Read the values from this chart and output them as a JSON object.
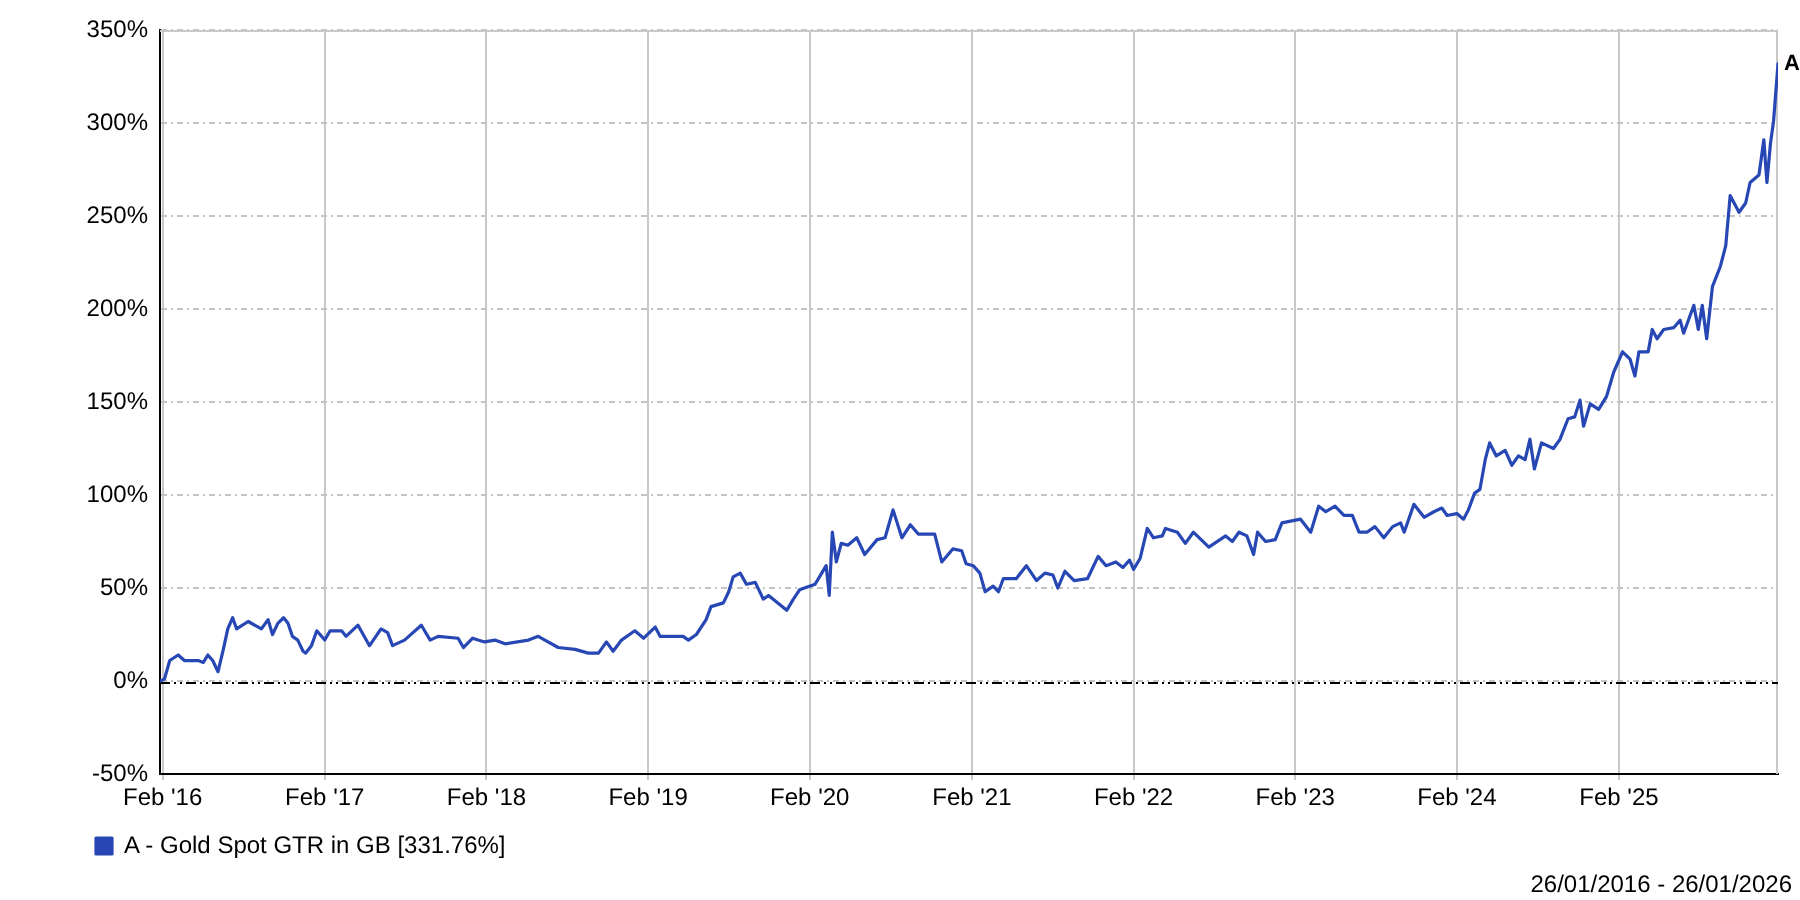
{
  "chart_data": {
    "type": "line",
    "x": [
      "2016-01-26",
      "2016-02-05",
      "2016-02-17",
      "2016-03-07",
      "2016-03-21",
      "2016-04-21",
      "2016-05-03",
      "2016-05-13",
      "2016-05-24",
      "2016-06-05",
      "2016-06-17",
      "2016-06-27",
      "2016-07-08",
      "2016-07-17",
      "2016-08-12",
      "2016-09-11",
      "2016-09-26",
      "2016-10-06",
      "2016-10-18",
      "2016-10-31",
      "2016-11-10",
      "2016-11-20",
      "2016-12-02",
      "2016-12-14",
      "2016-12-20",
      "2017-01-02",
      "2017-01-14",
      "2017-02-01",
      "2017-02-13",
      "2017-03-11",
      "2017-03-21",
      "2017-04-17",
      "2017-05-13",
      "2017-06-08",
      "2017-06-23",
      "2017-07-04",
      "2017-07-31",
      "2017-09-07",
      "2017-09-27",
      "2017-10-15",
      "2017-11-29",
      "2017-12-11",
      "2018-01-01",
      "2018-01-13",
      "2018-01-28",
      "2018-02-20",
      "2018-03-15",
      "2018-05-07",
      "2018-05-29",
      "2018-06-13",
      "2018-07-13",
      "2018-08-20",
      "2018-09-19",
      "2018-10-12",
      "2018-10-30",
      "2018-11-14",
      "2018-12-03",
      "2019-01-02",
      "2019-01-22",
      "2019-02-17",
      "2019-02-28",
      "2019-04-21",
      "2019-05-03",
      "2019-05-21",
      "2019-06-12",
      "2019-06-23",
      "2019-07-21",
      "2019-08-02",
      "2019-08-12",
      "2019-08-28",
      "2019-09-11",
      "2019-10-01",
      "2019-10-19",
      "2019-10-31",
      "2019-12-11",
      "2019-12-26",
      "2020-01-09",
      "2020-02-13",
      "2020-02-28",
      "2020-03-09",
      "2020-03-16",
      "2020-03-23",
      "2020-04-01",
      "2020-04-12",
      "2020-04-27",
      "2020-05-17",
      "2020-06-04",
      "2020-07-02",
      "2020-07-20",
      "2020-08-07",
      "2020-08-27",
      "2020-09-15",
      "2020-10-03",
      "2020-11-09",
      "2020-11-25",
      "2020-12-20",
      "2021-01-09",
      "2021-01-19",
      "2021-02-04",
      "2021-02-19",
      "2021-03-03",
      "2021-03-21",
      "2021-04-02",
      "2021-04-13",
      "2021-05-12",
      "2021-06-04",
      "2021-06-27",
      "2021-07-16",
      "2021-08-03",
      "2021-08-14",
      "2021-08-30",
      "2021-09-20",
      "2021-10-20",
      "2021-11-13",
      "2021-12-01",
      "2021-12-23",
      "2022-01-08",
      "2022-01-23",
      "2022-02-01",
      "2022-02-16",
      "2022-03-04",
      "2022-03-18",
      "2022-04-07",
      "2022-04-14",
      "2022-05-11",
      "2022-05-29",
      "2022-06-16",
      "2022-07-21",
      "2022-08-28",
      "2022-09-12",
      "2022-09-27",
      "2022-10-15",
      "2022-10-30",
      "2022-11-08",
      "2022-11-26",
      "2022-12-18",
      "2023-01-02",
      "2023-02-13",
      "2023-03-08",
      "2023-03-26",
      "2023-04-11",
      "2023-05-02",
      "2023-05-22",
      "2023-06-10",
      "2023-06-25",
      "2023-07-13",
      "2023-07-31",
      "2023-08-20",
      "2023-09-09",
      "2023-09-27",
      "2023-10-05",
      "2023-10-27",
      "2023-11-19",
      "2023-12-11",
      "2023-12-29",
      "2024-01-10",
      "2024-02-01",
      "2024-02-16",
      "2024-02-27",
      "2024-03-12",
      "2024-03-24",
      "2024-04-05",
      "2024-04-15",
      "2024-04-30",
      "2024-05-20",
      "2024-06-04",
      "2024-06-19",
      "2024-07-04",
      "2024-07-15",
      "2024-07-25",
      "2024-08-10",
      "2024-09-06",
      "2024-09-21",
      "2024-10-09",
      "2024-10-24",
      "2024-11-05",
      "2024-11-13",
      "2024-11-28",
      "2024-12-17",
      "2025-01-04",
      "2025-01-20",
      "2025-02-09",
      "2025-02-26",
      "2025-03-09",
      "2025-03-18",
      "2025-04-08",
      "2025-04-17",
      "2025-04-28",
      "2025-05-13",
      "2025-06-05",
      "2025-06-19",
      "2025-06-27",
      "2025-07-20",
      "2025-07-30",
      "2025-08-08",
      "2025-08-18",
      "2025-08-31",
      "2025-09-18",
      "2025-09-30",
      "2025-10-10",
      "2025-10-30",
      "2025-11-14",
      "2025-11-24",
      "2025-12-14",
      "2025-12-25",
      "2026-01-01",
      "2026-01-09",
      "2026-01-16",
      "2026-01-26"
    ],
    "series": [
      {
        "name": "A - Gold Spot GTR in GB [331.76%]",
        "color": "#2747b4",
        "values": [
          0,
          1,
          11,
          14,
          11,
          11,
          10,
          14,
          11,
          5,
          17,
          28,
          34,
          28,
          32,
          28,
          33,
          25,
          31,
          34,
          31,
          24,
          22,
          16,
          15,
          19,
          27,
          22,
          27,
          27,
          24,
          30,
          19,
          28,
          26,
          19,
          22,
          30,
          22,
          24,
          23,
          18,
          23,
          22,
          21,
          22,
          20,
          22,
          24,
          22,
          18,
          17,
          15,
          15,
          21,
          16,
          22,
          27,
          23,
          29,
          24,
          24,
          22,
          25,
          33,
          40,
          42,
          48,
          56,
          58,
          52,
          53,
          44,
          46,
          38,
          44,
          49,
          52,
          58,
          62,
          46,
          80,
          64,
          74,
          73,
          77,
          68,
          76,
          77,
          92,
          77,
          84,
          79,
          79,
          64,
          71,
          70,
          63,
          62,
          58,
          48,
          51,
          48,
          55,
          55,
          62,
          54,
          58,
          57,
          50,
          59,
          54,
          55,
          67,
          62,
          64,
          61,
          65,
          60,
          66,
          82,
          77,
          78,
          82,
          80,
          74,
          80,
          72,
          78,
          75,
          80,
          78,
          68,
          80,
          75,
          76,
          85,
          87,
          80,
          94,
          91,
          94,
          89,
          89,
          80,
          80,
          83,
          77,
          83,
          85,
          80,
          95,
          88,
          91,
          93,
          89,
          90,
          87,
          92,
          101,
          103,
          119,
          128,
          121,
          124,
          116,
          121,
          119,
          130,
          114,
          128,
          125,
          130,
          141,
          142,
          151,
          137,
          149,
          146,
          153,
          166,
          177,
          173,
          164,
          177,
          177,
          189,
          184,
          189,
          190,
          194,
          187,
          202,
          189,
          202,
          184,
          212,
          223,
          234,
          261,
          252,
          257,
          268,
          272,
          291,
          268,
          289,
          301,
          331.76
        ]
      }
    ],
    "xlim": [
      "2016-01-26",
      "2026-01-26"
    ],
    "xticks": [
      {
        "value": "2016-02-01",
        "label": "Feb '16"
      },
      {
        "value": "2017-02-01",
        "label": "Feb '17"
      },
      {
        "value": "2018-02-01",
        "label": "Feb '18"
      },
      {
        "value": "2019-02-01",
        "label": "Feb '19"
      },
      {
        "value": "2020-02-01",
        "label": "Feb '20"
      },
      {
        "value": "2021-02-01",
        "label": "Feb '21"
      },
      {
        "value": "2022-02-01",
        "label": "Feb '22"
      },
      {
        "value": "2023-02-01",
        "label": "Feb '23"
      },
      {
        "value": "2024-02-01",
        "label": "Feb '24"
      },
      {
        "value": "2025-02-01",
        "label": "Feb '25"
      }
    ],
    "ylim": [
      -50,
      350
    ],
    "yticks": [
      {
        "value": -50,
        "label": "-50%"
      },
      {
        "value": 0,
        "label": "0%"
      },
      {
        "value": 50,
        "label": "50%"
      },
      {
        "value": 100,
        "label": "100%"
      },
      {
        "value": 150,
        "label": "150%"
      },
      {
        "value": 200,
        "label": "200%"
      },
      {
        "value": 250,
        "label": "250%"
      },
      {
        "value": 300,
        "label": "300%"
      },
      {
        "value": 350,
        "label": "350%"
      }
    ],
    "ref_lines": [
      {
        "axis": "y",
        "value": 0,
        "color": "#000000",
        "line_style": "dashed"
      }
    ],
    "annotations": [
      {
        "text": "A",
        "x": "2026-01-26",
        "y": 331.76
      },
      "26/01/2016 - 26/01/2026"
    ],
    "grid": true,
    "legend": "bottom left"
  }
}
